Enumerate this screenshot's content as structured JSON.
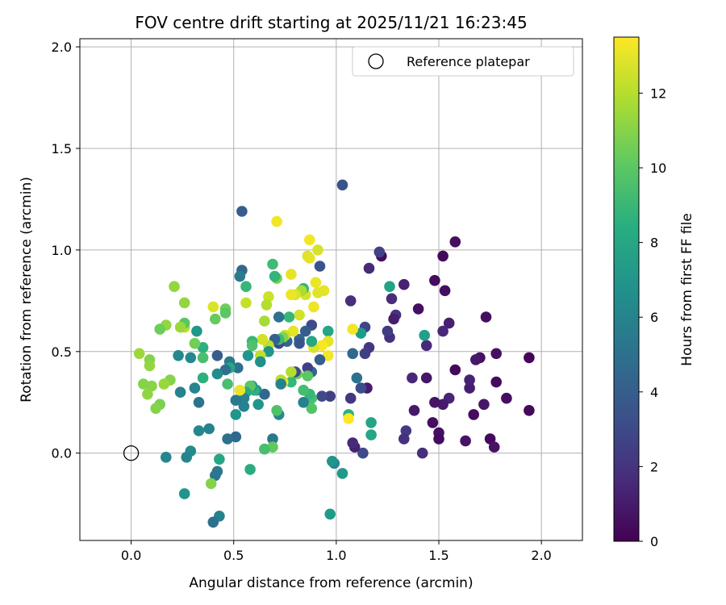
{
  "chart_data": {
    "type": "scatter",
    "title": "FOV centre drift starting at 2025/11/21 16:23:45",
    "xlabel": "Angular distance from reference (arcmin)",
    "ylabel": "Rotation from reference (arcmin)",
    "xlim": [
      -0.25,
      2.2
    ],
    "ylim": [
      -0.43,
      2.04
    ],
    "xticks": [
      0.0,
      0.5,
      1.0,
      1.5,
      2.0
    ],
    "xtick_labels": [
      "0.0",
      "0.5",
      "1.0",
      "1.5",
      "2.0"
    ],
    "yticks": [
      0.0,
      0.5,
      1.0,
      1.5,
      2.0
    ],
    "ytick_labels": [
      "0.0",
      "0.5",
      "1.0",
      "1.5",
      "2.0"
    ],
    "grid": true,
    "legend": {
      "placement": "top-right",
      "entries": [
        "Reference platepar"
      ]
    },
    "reference_point": {
      "x": 0.0,
      "y": 0.0,
      "label": "Reference platepar"
    },
    "colorbar": {
      "label": "Hours from first FF file",
      "min": 0,
      "max": 13.5,
      "ticks": [
        0,
        2,
        4,
        6,
        8,
        10,
        12
      ],
      "tick_labels": [
        "0",
        "2",
        "4",
        "6",
        "8",
        "10",
        "12"
      ],
      "colormap": "viridis"
    },
    "point_fields": [
      "x",
      "y",
      "hours"
    ],
    "points": [
      [
        1.94,
        0.47,
        0.2
      ],
      [
        1.94,
        0.21,
        0.3
      ],
      [
        1.83,
        0.27,
        0.5
      ],
      [
        1.78,
        0.49,
        0.6
      ],
      [
        1.78,
        0.35,
        0.4
      ],
      [
        1.75,
        0.07,
        0.3
      ],
      [
        1.77,
        0.03,
        0.7
      ],
      [
        1.73,
        0.67,
        0.5
      ],
      [
        1.72,
        0.24,
        0.8
      ],
      [
        1.7,
        0.47,
        0.6
      ],
      [
        1.68,
        0.46,
        0.9
      ],
      [
        1.67,
        0.19,
        0.4
      ],
      [
        1.65,
        0.32,
        1.1
      ],
      [
        1.65,
        0.36,
        1.3
      ],
      [
        1.63,
        0.06,
        0.7
      ],
      [
        1.58,
        1.04,
        0.5
      ],
      [
        1.58,
        0.41,
        0.3
      ],
      [
        1.55,
        0.64,
        1.2
      ],
      [
        1.55,
        0.27,
        1.4
      ],
      [
        1.53,
        0.8,
        0.5
      ],
      [
        1.52,
        0.97,
        0.3
      ],
      [
        1.52,
        0.6,
        1.5
      ],
      [
        1.52,
        0.24,
        1.0
      ],
      [
        1.5,
        0.1,
        0.6
      ],
      [
        1.5,
        0.07,
        0.4
      ],
      [
        1.48,
        0.85,
        0.4
      ],
      [
        1.48,
        0.25,
        0.7
      ],
      [
        1.47,
        0.15,
        0.5
      ],
      [
        1.44,
        0.37,
        0.8
      ],
      [
        1.44,
        0.53,
        1.6
      ],
      [
        1.43,
        0.58,
        7.6
      ],
      [
        1.42,
        0.0,
        1.8
      ],
      [
        1.4,
        0.71,
        0.5
      ],
      [
        1.38,
        0.21,
        0.9
      ],
      [
        1.37,
        0.37,
        1.5
      ],
      [
        1.34,
        0.11,
        2.3
      ],
      [
        1.33,
        0.07,
        1.9
      ],
      [
        1.33,
        0.83,
        1.3
      ],
      [
        1.29,
        0.68,
        2.0
      ],
      [
        1.28,
        0.66,
        1.1
      ],
      [
        1.27,
        0.76,
        1.7
      ],
      [
        1.26,
        0.82,
        7.8
      ],
      [
        1.26,
        0.57,
        1.9
      ],
      [
        1.25,
        0.6,
        2.4
      ],
      [
        1.22,
        0.97,
        0.4
      ],
      [
        1.21,
        0.99,
        2.6
      ],
      [
        1.16,
        0.91,
        1.6
      ],
      [
        1.16,
        0.52,
        2.2
      ],
      [
        1.15,
        0.32,
        1.0
      ],
      [
        1.14,
        0.49,
        2.5
      ],
      [
        1.14,
        0.62,
        2.8
      ],
      [
        1.13,
        0.0,
        3.0
      ],
      [
        1.12,
        0.32,
        3.2
      ],
      [
        1.12,
        0.59,
        7.4
      ],
      [
        1.1,
        0.37,
        5.0
      ],
      [
        1.09,
        0.03,
        1.3
      ],
      [
        1.08,
        0.05,
        1.6
      ],
      [
        1.08,
        0.49,
        4.5
      ],
      [
        1.07,
        0.27,
        2.1
      ],
      [
        1.07,
        0.75,
        1.8
      ],
      [
        1.06,
        0.19,
        8.5
      ],
      [
        1.06,
        0.17,
        13.5
      ],
      [
        1.08,
        0.61,
        13.3
      ],
      [
        1.17,
        0.09,
        8.0
      ],
      [
        1.17,
        0.15,
        7.9
      ],
      [
        1.03,
        1.32,
        3.5
      ],
      [
        1.03,
        -0.1,
        7.3
      ],
      [
        0.99,
        -0.05,
        6.0
      ],
      [
        0.98,
        -0.04,
        7.0
      ],
      [
        0.97,
        -0.3,
        7.4
      ],
      [
        0.97,
        0.28,
        2.5
      ],
      [
        0.96,
        0.6,
        8.0
      ],
      [
        0.96,
        0.48,
        13.3
      ],
      [
        0.96,
        0.55,
        13.0
      ],
      [
        0.94,
        0.8,
        13.0
      ],
      [
        0.93,
        0.53,
        13.4
      ],
      [
        0.93,
        0.28,
        3.0
      ],
      [
        0.92,
        0.46,
        4.0
      ],
      [
        0.92,
        0.92,
        3.5
      ],
      [
        0.91,
        0.79,
        12.9
      ],
      [
        0.91,
        1.0,
        12.7
      ],
      [
        0.9,
        0.84,
        13.1
      ],
      [
        0.89,
        0.72,
        13.2
      ],
      [
        0.89,
        0.52,
        12.8
      ],
      [
        0.88,
        0.4,
        4.5
      ],
      [
        0.88,
        0.27,
        9.5
      ],
      [
        0.88,
        0.63,
        3.0
      ],
      [
        0.88,
        0.55,
        8.0
      ],
      [
        0.88,
        0.22,
        9.8
      ],
      [
        0.87,
        1.05,
        13.3
      ],
      [
        0.87,
        0.96,
        13.0
      ],
      [
        0.87,
        0.29,
        9.0
      ],
      [
        0.86,
        0.97,
        12.9
      ],
      [
        0.86,
        0.42,
        2.5
      ],
      [
        0.86,
        0.38,
        10.0
      ],
      [
        0.85,
        0.78,
        12.7
      ],
      [
        0.85,
        0.6,
        4.0
      ],
      [
        0.84,
        0.81,
        9.0
      ],
      [
        0.84,
        0.31,
        9.4
      ],
      [
        0.84,
        0.25,
        6.0
      ],
      [
        0.83,
        0.8,
        11.8
      ],
      [
        0.82,
        0.68,
        12.6
      ],
      [
        0.82,
        0.56,
        4.5
      ],
      [
        0.82,
        0.54,
        3.5
      ],
      [
        0.81,
        0.39,
        10.5
      ],
      [
        0.8,
        0.78,
        12.8
      ],
      [
        0.8,
        0.4,
        3.0
      ],
      [
        0.79,
        0.6,
        13.0
      ],
      [
        0.78,
        0.88,
        13.0
      ],
      [
        0.78,
        0.78,
        13.2
      ],
      [
        0.78,
        0.35,
        9.0
      ],
      [
        0.78,
        0.4,
        12.0
      ],
      [
        0.77,
        0.67,
        9.0
      ],
      [
        0.76,
        0.55,
        4.5
      ],
      [
        0.75,
        0.58,
        12.5
      ],
      [
        0.74,
        0.57,
        11.0
      ],
      [
        0.74,
        0.35,
        13.3
      ],
      [
        0.73,
        0.36,
        12.1
      ],
      [
        0.73,
        0.34,
        6.0
      ],
      [
        0.72,
        0.54,
        3.0
      ],
      [
        0.72,
        0.67,
        5.0
      ],
      [
        0.72,
        0.56,
        9.2
      ],
      [
        0.72,
        0.19,
        6.3
      ],
      [
        0.71,
        1.14,
        13.3
      ],
      [
        0.71,
        0.86,
        10.7
      ],
      [
        0.71,
        0.21,
        9.7
      ],
      [
        0.7,
        0.87,
        8.8
      ],
      [
        0.7,
        0.56,
        4.2
      ],
      [
        0.69,
        0.93,
        9.3
      ],
      [
        0.69,
        0.07,
        5.5
      ],
      [
        0.69,
        0.03,
        10.2
      ],
      [
        0.67,
        0.77,
        12.5
      ],
      [
        0.67,
        0.53,
        12.2
      ],
      [
        0.67,
        0.5,
        7.0
      ],
      [
        0.66,
        0.73,
        12.0
      ],
      [
        0.65,
        0.65,
        11.7
      ],
      [
        0.65,
        0.29,
        4.5
      ],
      [
        0.65,
        0.02,
        9.5
      ],
      [
        0.64,
        0.56,
        12.6
      ],
      [
        0.63,
        0.48,
        12.2
      ],
      [
        0.63,
        0.45,
        6.7
      ],
      [
        0.62,
        0.24,
        7.0
      ],
      [
        0.61,
        0.31,
        6.4
      ],
      [
        0.6,
        0.31,
        8.6
      ],
      [
        0.59,
        0.55,
        9.0
      ],
      [
        0.59,
        0.53,
        9.7
      ],
      [
        0.59,
        0.33,
        7.5
      ],
      [
        0.58,
        0.33,
        10.0
      ],
      [
        0.58,
        -0.08,
        8.3
      ],
      [
        0.57,
        0.48,
        7.0
      ],
      [
        0.56,
        0.82,
        9.0
      ],
      [
        0.56,
        0.74,
        12.3
      ],
      [
        0.56,
        0.3,
        8.2
      ],
      [
        0.55,
        0.27,
        6.0
      ],
      [
        0.55,
        0.23,
        6.0
      ],
      [
        0.54,
        1.19,
        4.0
      ],
      [
        0.54,
        0.9,
        4.5
      ],
      [
        0.53,
        0.87,
        5.6
      ],
      [
        0.53,
        0.31,
        13.1
      ],
      [
        0.52,
        0.42,
        5.0
      ],
      [
        0.51,
        0.26,
        5.5
      ],
      [
        0.51,
        0.19,
        7.0
      ],
      [
        0.51,
        0.08,
        4.5
      ],
      [
        0.48,
        0.45,
        5.5
      ],
      [
        0.48,
        0.42,
        8.0
      ],
      [
        0.47,
        0.34,
        9.5
      ],
      [
        0.47,
        0.07,
        5.0
      ],
      [
        0.46,
        0.71,
        10.6
      ],
      [
        0.46,
        0.69,
        10.0
      ],
      [
        0.46,
        0.41,
        5.0
      ],
      [
        0.43,
        -0.31,
        6.0
      ],
      [
        0.43,
        -0.03,
        8.0
      ],
      [
        0.42,
        0.48,
        4.0
      ],
      [
        0.42,
        0.39,
        6.5
      ],
      [
        0.42,
        -0.09,
        5.5
      ],
      [
        0.41,
        0.66,
        10.3
      ],
      [
        0.41,
        -0.11,
        5.3
      ],
      [
        0.4,
        0.72,
        12.8
      ],
      [
        0.4,
        -0.34,
        5.0
      ],
      [
        0.39,
        -0.15,
        11.0
      ],
      [
        0.38,
        0.12,
        6.0
      ],
      [
        0.35,
        0.52,
        8.5
      ],
      [
        0.35,
        0.47,
        9.5
      ],
      [
        0.35,
        0.37,
        8.5
      ],
      [
        0.33,
        0.11,
        6.2
      ],
      [
        0.33,
        0.25,
        5.2
      ],
      [
        0.32,
        0.6,
        7.1
      ],
      [
        0.31,
        0.54,
        10.6
      ],
      [
        0.31,
        0.32,
        6.2
      ],
      [
        0.29,
        0.47,
        6.4
      ],
      [
        0.29,
        0.01,
        6.5
      ],
      [
        0.27,
        -0.02,
        6.2
      ],
      [
        0.26,
        0.62,
        12.0
      ],
      [
        0.26,
        0.74,
        11.3
      ],
      [
        0.26,
        0.64,
        10.0
      ],
      [
        0.26,
        -0.2,
        7.0
      ],
      [
        0.24,
        0.62,
        11.5
      ],
      [
        0.24,
        0.3,
        6.0
      ],
      [
        0.23,
        0.48,
        6.3
      ],
      [
        0.21,
        0.82,
        11.3
      ],
      [
        0.19,
        0.36,
        11.0
      ],
      [
        0.17,
        0.63,
        11.3
      ],
      [
        0.17,
        -0.02,
        6.2
      ],
      [
        0.16,
        0.34,
        11.4
      ],
      [
        0.14,
        0.61,
        10.5
      ],
      [
        0.14,
        0.24,
        10.8
      ],
      [
        0.12,
        0.22,
        11.0
      ],
      [
        0.1,
        0.33,
        11.1
      ],
      [
        0.09,
        0.46,
        11.0
      ],
      [
        0.09,
        0.43,
        11.3
      ],
      [
        0.08,
        0.29,
        11.2
      ],
      [
        0.06,
        0.34,
        11.0
      ],
      [
        0.04,
        0.49,
        11.5
      ]
    ]
  }
}
